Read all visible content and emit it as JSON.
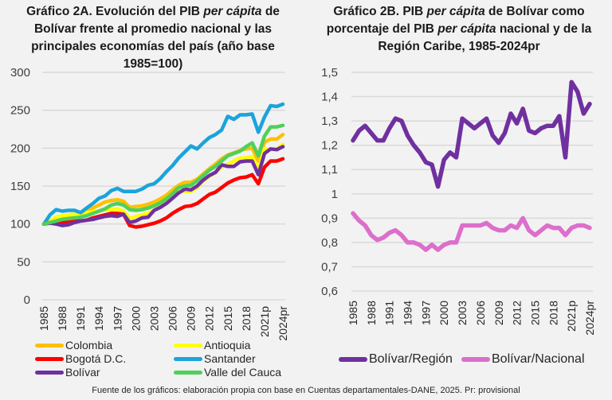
{
  "footer": "Fuente de los gráficos: elaboración propia con base en Cuentas departamentales-DANE, 2025. Pr: provisional",
  "chart_data": [
    {
      "id": "A",
      "type": "line",
      "title_parts": [
        {
          "text": "Gráfico 2A. Evolución del PIB ",
          "italic": false
        },
        {
          "text": "per cápita",
          "italic": true
        },
        {
          "text": " de Bolívar frente al promedio nacional y las principales economías del país (año base 1985=100)",
          "italic": false
        }
      ],
      "title": "Gráfico 2A. Evolución del PIB per cápita de Bolívar frente al promedio nacional y las principales economías del país (año base 1985=100)",
      "xlabel": "",
      "ylabel": "",
      "ylim": [
        0,
        300
      ],
      "yticks": [
        "0",
        "50",
        "100",
        "150",
        "200",
        "250",
        "300"
      ],
      "ytick_values": [
        0,
        50,
        100,
        150,
        200,
        250,
        300
      ],
      "grid": true,
      "legend_position": "bottom",
      "x": [
        "1985",
        "1986",
        "1987",
        "1988",
        "1989",
        "1990",
        "1991",
        "1992",
        "1993",
        "1994",
        "1995",
        "1996",
        "1997",
        "1998",
        "1999",
        "2000",
        "2001",
        "2002",
        "2003",
        "2004",
        "2005",
        "2006",
        "2007",
        "2008",
        "2009",
        "2010",
        "2011",
        "2012",
        "2013",
        "2014",
        "2015",
        "2016",
        "2017",
        "2018",
        "2019",
        "2020",
        "2021p",
        "2022",
        "2023",
        "2024pr"
      ],
      "xtick_labels": [
        "1985",
        "1988",
        "1991",
        "1994",
        "1997",
        "2000",
        "2003",
        "2006",
        "2009",
        "2012",
        "2015",
        "2018",
        "2021p",
        "2024pr"
      ],
      "series": [
        {
          "name": "Colombia",
          "color": "#ffc000",
          "values": [
            100,
            104,
            108,
            110,
            111,
            112,
            113,
            117,
            121,
            125,
            129,
            131,
            132,
            130,
            122,
            123,
            124,
            126,
            129,
            133,
            138,
            145,
            151,
            155,
            155,
            159,
            166,
            173,
            179,
            186,
            191,
            194,
            197,
            199,
            200,
            183,
            208,
            212,
            212,
            218
          ]
        },
        {
          "name": "Antioquia",
          "color": "#ffff00",
          "values": [
            100,
            104,
            109,
            111,
            112,
            113,
            113,
            115,
            116,
            117,
            119,
            119,
            120,
            117,
            107,
            110,
            112,
            114,
            118,
            124,
            130,
            137,
            144,
            143,
            143,
            148,
            157,
            163,
            168,
            175,
            179,
            183,
            187,
            187,
            189,
            170,
            199,
            199,
            199,
            205
          ]
        },
        {
          "name": "Bogotá D.C.",
          "color": "#ff0000",
          "values": [
            100,
            102,
            103,
            102,
            103,
            105,
            104,
            105,
            108,
            110,
            112,
            114,
            114,
            113,
            98,
            96,
            97,
            99,
            101,
            104,
            108,
            114,
            119,
            123,
            124,
            127,
            133,
            139,
            142,
            148,
            154,
            158,
            161,
            162,
            165,
            153,
            175,
            183,
            183,
            186
          ]
        },
        {
          "name": "Santander",
          "color": "#1ca3dc",
          "values": [
            100,
            112,
            119,
            117,
            118,
            118,
            115,
            121,
            127,
            134,
            137,
            144,
            147,
            143,
            143,
            143,
            146,
            151,
            153,
            160,
            169,
            177,
            187,
            195,
            203,
            199,
            207,
            214,
            218,
            224,
            242,
            238,
            244,
            244,
            245,
            221,
            241,
            256,
            255,
            258
          ]
        },
        {
          "name": "Bolívar",
          "color": "#7030a0",
          "values": [
            100,
            101,
            100,
            98,
            99,
            102,
            104,
            105,
            106,
            108,
            110,
            111,
            110,
            113,
            102,
            104,
            108,
            109,
            118,
            122,
            127,
            134,
            141,
            146,
            145,
            150,
            158,
            164,
            168,
            178,
            176,
            176,
            182,
            183,
            183,
            165,
            193,
            199,
            198,
            202
          ]
        },
        {
          "name": "Valle del Cauca",
          "color": "#4fd05a",
          "values": [
            100,
            102,
            104,
            106,
            107,
            108,
            109,
            111,
            114,
            117,
            120,
            125,
            127,
            125,
            119,
            118,
            119,
            121,
            124,
            128,
            133,
            140,
            148,
            150,
            151,
            157,
            164,
            171,
            176,
            183,
            190,
            193,
            196,
            202,
            207,
            190,
            216,
            228,
            228,
            230
          ]
        }
      ]
    },
    {
      "id": "B",
      "type": "line",
      "title_parts": [
        {
          "text": "Gráfico 2B. PIB ",
          "italic": false
        },
        {
          "text": "per cápita",
          "italic": true
        },
        {
          "text": " de Bolívar como porcentaje del PIB ",
          "italic": false
        },
        {
          "text": "per cápita",
          "italic": true
        },
        {
          "text": " nacional y de la Región Caribe, 1985-2024pr",
          "italic": false
        }
      ],
      "title": "Gráfico 2B. PIB per cápita de Bolívar como porcentaje del PIB per cápita nacional y de la Región Caribe, 1985-2024pr",
      "xlabel": "",
      "ylabel": "",
      "ylim": [
        0.6,
        1.5
      ],
      "yticks": [
        "0,6",
        "0,7",
        "0,8",
        "0,9",
        "1",
        "1,1",
        "1,2",
        "1,3",
        "1,4",
        "1,5"
      ],
      "ytick_values": [
        0.6,
        0.7,
        0.8,
        0.9,
        1.0,
        1.1,
        1.2,
        1.3,
        1.4,
        1.5
      ],
      "grid": true,
      "legend_position": "bottom",
      "x": [
        "1985",
        "1986",
        "1987",
        "1988",
        "1989",
        "1990",
        "1991",
        "1992",
        "1993",
        "1994",
        "1995",
        "1996",
        "1997",
        "1998",
        "1999",
        "2000",
        "2001",
        "2002",
        "2003",
        "2004",
        "2005",
        "2006",
        "2007",
        "2008",
        "2009",
        "2010",
        "2011",
        "2012",
        "2013",
        "2014",
        "2015",
        "2016",
        "2017",
        "2018",
        "2019",
        "2020",
        "2021p",
        "2022",
        "2023",
        "2024pr"
      ],
      "xtick_labels": [
        "1985",
        "1988",
        "1991",
        "1994",
        "1997",
        "2000",
        "2003",
        "2006",
        "2009",
        "2012",
        "2015",
        "2018",
        "2021p",
        "2024pr"
      ],
      "series": [
        {
          "name": "Bolívar/Región",
          "color": "#7030a0",
          "values": [
            1.22,
            1.26,
            1.28,
            1.25,
            1.22,
            1.22,
            1.27,
            1.31,
            1.3,
            1.24,
            1.2,
            1.17,
            1.13,
            1.12,
            1.03,
            1.14,
            1.17,
            1.15,
            1.31,
            1.29,
            1.27,
            1.29,
            1.31,
            1.24,
            1.21,
            1.25,
            1.33,
            1.29,
            1.35,
            1.26,
            1.25,
            1.27,
            1.28,
            1.28,
            1.32,
            1.15,
            1.46,
            1.42,
            1.33,
            1.37
          ]
        },
        {
          "name": "Bolívar/Nacional",
          "color": "#dc6fcb",
          "values": [
            0.92,
            0.89,
            0.87,
            0.83,
            0.81,
            0.82,
            0.84,
            0.85,
            0.83,
            0.8,
            0.8,
            0.79,
            0.77,
            0.79,
            0.77,
            0.79,
            0.8,
            0.8,
            0.87,
            0.87,
            0.87,
            0.87,
            0.88,
            0.86,
            0.85,
            0.85,
            0.87,
            0.86,
            0.9,
            0.85,
            0.83,
            0.85,
            0.87,
            0.86,
            0.86,
            0.83,
            0.86,
            0.87,
            0.87,
            0.86
          ]
        }
      ]
    }
  ]
}
